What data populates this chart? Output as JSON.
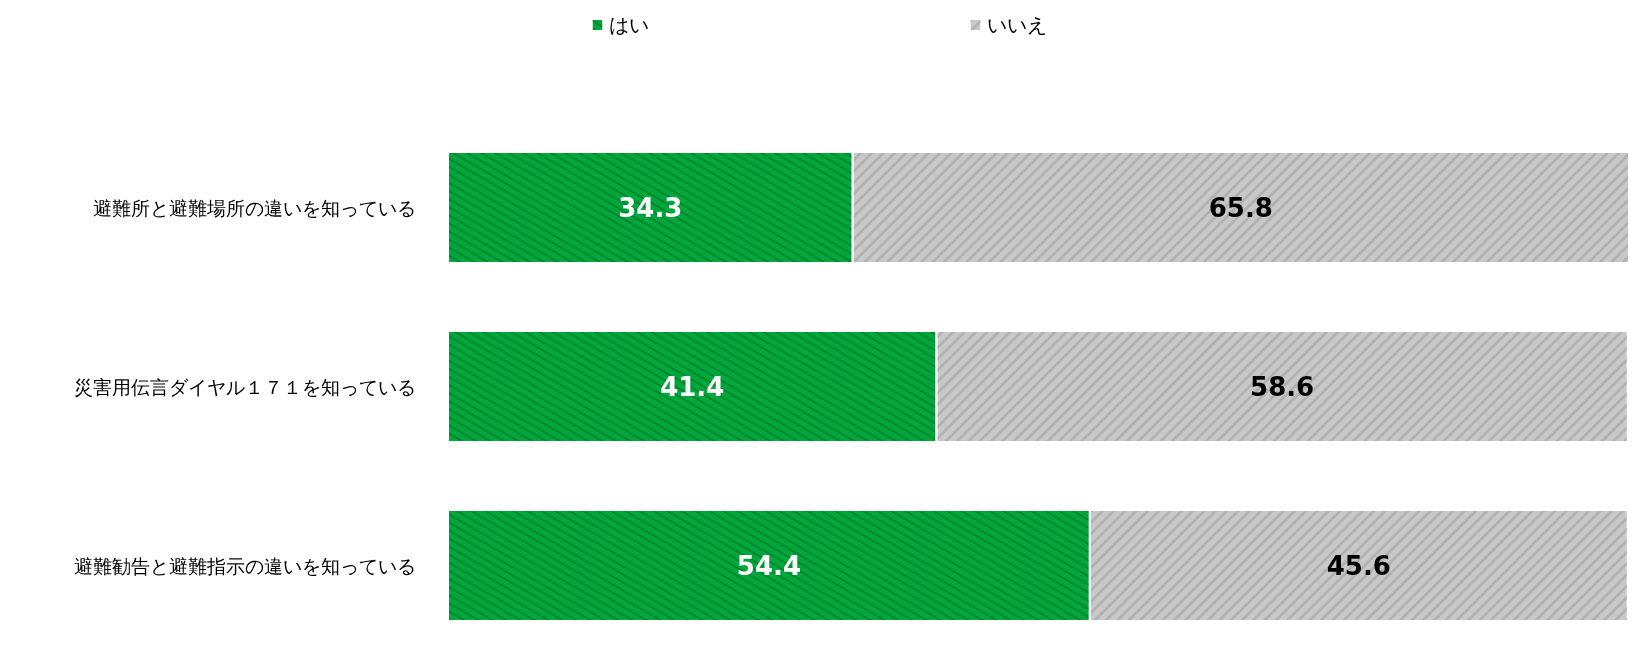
{
  "chart_data": {
    "type": "bar",
    "orientation": "horizontal",
    "stacked": true,
    "data_labels": true,
    "legend": "top",
    "grid": false,
    "categories": [
      "避難所と避難場所の違いを知っている",
      "災害用伝言ダイヤル１７１を知っている",
      "避難勧告と避難指示の違いを知っている"
    ],
    "series": [
      {
        "name": "はい",
        "color": "#00a83c",
        "values": [
          34.3,
          41.4,
          54.4
        ]
      },
      {
        "name": "いいえ",
        "color": "#c8c8c8",
        "values": [
          65.8,
          58.6,
          45.6
        ]
      }
    ]
  }
}
